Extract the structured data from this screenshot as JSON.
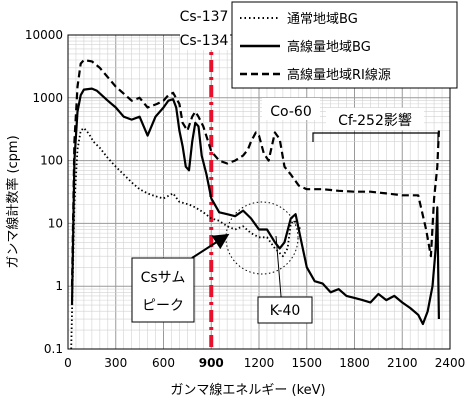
{
  "chart_data": {
    "type": "line",
    "xlabel": "ガンマ線エネルギー (keV)",
    "ylabel": "ガンマ線計数率 (cpm)",
    "x_scale": "linear",
    "y_scale": "log",
    "xlim": [
      0,
      2400
    ],
    "ylim": [
      0.1,
      10000
    ],
    "x_ticks": [
      "0",
      "300",
      "600",
      "900",
      "1200",
      "1500",
      "1800",
      "2100",
      "2400"
    ],
    "y_ticks": [
      "0.1",
      "1",
      "10",
      "100",
      "1000",
      "10000"
    ],
    "grid": true,
    "legend_position": "top-right",
    "highlight_tick": "900",
    "series": [
      {
        "name": "通常地域BG",
        "style": "dotted",
        "points": [
          [
            20,
            0.1
          ],
          [
            40,
            20
          ],
          [
            60,
            150
          ],
          [
            80,
            300
          ],
          [
            100,
            330
          ],
          [
            130,
            270
          ],
          [
            160,
            200
          ],
          [
            200,
            160
          ],
          [
            250,
            110
          ],
          [
            300,
            80
          ],
          [
            350,
            60
          ],
          [
            400,
            45
          ],
          [
            450,
            35
          ],
          [
            500,
            30
          ],
          [
            550,
            27
          ],
          [
            600,
            25
          ],
          [
            660,
            30
          ],
          [
            700,
            22
          ],
          [
            760,
            20
          ],
          [
            800,
            18
          ],
          [
            850,
            15
          ],
          [
            900,
            12
          ],
          [
            950,
            11
          ],
          [
            1000,
            9
          ],
          [
            1050,
            8
          ],
          [
            1100,
            9
          ],
          [
            1150,
            7
          ],
          [
            1200,
            6
          ],
          [
            1250,
            6
          ],
          [
            1300,
            4
          ],
          [
            1350,
            3
          ],
          [
            1380,
            4
          ],
          [
            1400,
            10
          ],
          [
            1420,
            11
          ],
          [
            1440,
            10
          ],
          [
            1460,
            8
          ]
        ]
      },
      {
        "name": "高線量地域BG",
        "style": "solid",
        "points": [
          [
            25,
            0.5
          ],
          [
            40,
            100
          ],
          [
            60,
            600
          ],
          [
            80,
            1100
          ],
          [
            100,
            1350
          ],
          [
            150,
            1400
          ],
          [
            180,
            1300
          ],
          [
            250,
            900
          ],
          [
            300,
            700
          ],
          [
            350,
            500
          ],
          [
            400,
            450
          ],
          [
            450,
            500
          ],
          [
            500,
            250
          ],
          [
            550,
            500
          ],
          [
            600,
            700
          ],
          [
            630,
            900
          ],
          [
            660,
            950
          ],
          [
            680,
            700
          ],
          [
            700,
            300
          ],
          [
            720,
            170
          ],
          [
            740,
            80
          ],
          [
            760,
            70
          ],
          [
            780,
            200
          ],
          [
            800,
            400
          ],
          [
            820,
            350
          ],
          [
            840,
            120
          ],
          [
            870,
            60
          ],
          [
            900,
            25
          ],
          [
            950,
            15
          ],
          [
            1000,
            14
          ],
          [
            1050,
            13
          ],
          [
            1100,
            16
          ],
          [
            1150,
            12
          ],
          [
            1200,
            8
          ],
          [
            1250,
            8
          ],
          [
            1300,
            5
          ],
          [
            1330,
            4
          ],
          [
            1360,
            5
          ],
          [
            1400,
            12
          ],
          [
            1430,
            14
          ],
          [
            1460,
            6
          ],
          [
            1500,
            2
          ],
          [
            1550,
            1.2
          ],
          [
            1600,
            1.1
          ],
          [
            1650,
            0.8
          ],
          [
            1700,
            0.9
          ],
          [
            1750,
            0.7
          ],
          [
            1800,
            0.65
          ],
          [
            1850,
            0.6
          ],
          [
            1900,
            0.55
          ],
          [
            1950,
            0.75
          ],
          [
            2000,
            0.6
          ],
          [
            2050,
            0.7
          ],
          [
            2100,
            0.55
          ],
          [
            2150,
            0.45
          ],
          [
            2200,
            0.35
          ],
          [
            2230,
            0.25
          ],
          [
            2260,
            0.4
          ],
          [
            2290,
            1
          ],
          [
            2310,
            4
          ],
          [
            2320,
            18
          ],
          [
            2330,
            0.3
          ]
        ]
      },
      {
        "name": "高線量地域RI線源",
        "style": "dashed",
        "points": [
          [
            25,
            1
          ],
          [
            40,
            200
          ],
          [
            60,
            1500
          ],
          [
            80,
            3500
          ],
          [
            100,
            4000
          ],
          [
            150,
            3800
          ],
          [
            200,
            3000
          ],
          [
            300,
            1500
          ],
          [
            400,
            900
          ],
          [
            450,
            1000
          ],
          [
            500,
            700
          ],
          [
            560,
            800
          ],
          [
            600,
            900
          ],
          [
            630,
            1100
          ],
          [
            660,
            1200
          ],
          [
            700,
            800
          ],
          [
            720,
            400
          ],
          [
            750,
            300
          ],
          [
            780,
            500
          ],
          [
            800,
            600
          ],
          [
            820,
            500
          ],
          [
            850,
            350
          ],
          [
            900,
            140
          ],
          [
            950,
            100
          ],
          [
            1000,
            90
          ],
          [
            1050,
            100
          ],
          [
            1100,
            120
          ],
          [
            1130,
            150
          ],
          [
            1150,
            200
          ],
          [
            1180,
            280
          ],
          [
            1200,
            250
          ],
          [
            1230,
            130
          ],
          [
            1260,
            100
          ],
          [
            1300,
            280
          ],
          [
            1330,
            220
          ],
          [
            1360,
            80
          ],
          [
            1400,
            60
          ],
          [
            1450,
            40
          ],
          [
            1500,
            35
          ],
          [
            1550,
            35
          ],
          [
            1600,
            35
          ],
          [
            1700,
            33
          ],
          [
            1800,
            32
          ],
          [
            1900,
            32
          ],
          [
            2000,
            30
          ],
          [
            2100,
            28
          ],
          [
            2200,
            28
          ],
          [
            2250,
            8
          ],
          [
            2280,
            3
          ],
          [
            2300,
            25
          ],
          [
            2320,
            80
          ],
          [
            2330,
            300
          ]
        ]
      }
    ],
    "annotations": {
      "cs137": "Cs-137",
      "cs134": "Cs-134",
      "co60": "Co-60",
      "cf252": "Cf-252影響",
      "compton_line1": "Csサム",
      "compton_line2": "ピーク",
      "k40": "K-40"
    }
  }
}
